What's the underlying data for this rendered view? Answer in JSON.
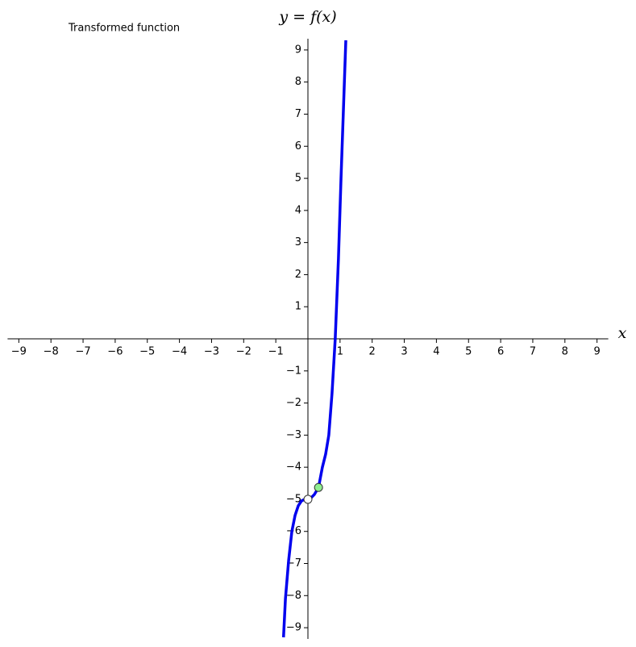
{
  "chart_data": {
    "type": "line",
    "ylabel": "y = f(x)",
    "xlabel": "x",
    "annotation": "Transformed function",
    "xlim": [
      -9.35,
      9.35
    ],
    "ylim": [
      -9.35,
      9.35
    ],
    "xticks": [
      {
        "value": -9,
        "label": "−9"
      },
      {
        "value": -8,
        "label": "−8"
      },
      {
        "value": -7,
        "label": "−7"
      },
      {
        "value": -6,
        "label": "−6"
      },
      {
        "value": -5,
        "label": "−5"
      },
      {
        "value": -4,
        "label": "−4"
      },
      {
        "value": -3,
        "label": "−3"
      },
      {
        "value": -2,
        "label": "−2"
      },
      {
        "value": -1,
        "label": "−1"
      },
      1,
      2,
      3,
      4,
      5,
      6,
      7,
      8,
      9
    ],
    "yticks": [
      {
        "value": -9,
        "label": "−9"
      },
      {
        "value": -8,
        "label": "−8"
      },
      {
        "value": -7,
        "label": "−7"
      },
      {
        "value": -6,
        "label": "−6"
      },
      {
        "value": -5,
        "label": "−5"
      },
      {
        "value": -4,
        "label": "−4"
      },
      {
        "value": -3,
        "label": "−3"
      },
      {
        "value": -2,
        "label": "−2"
      },
      {
        "value": -1,
        "label": "−1"
      },
      1,
      2,
      3,
      4,
      5,
      6,
      7,
      8,
      9
    ],
    "series": [
      {
        "color": "#0000ee",
        "x": [
          -0.76,
          -0.7,
          -0.6,
          -0.5,
          -0.4,
          -0.3,
          -0.2,
          -0.1,
          0,
          0.1,
          0.2,
          0.33,
          0.45,
          0.55,
          0.65,
          0.75,
          0.85,
          0.95,
          1.03,
          1.1,
          1.18
        ],
        "values": [
          -9.3,
          -8.1,
          -6.9,
          -6.0,
          -5.5,
          -5.2,
          -5.05,
          -5.0,
          -5.0,
          -4.95,
          -4.85,
          -4.63,
          -4.0,
          -3.6,
          -3.0,
          -1.7,
          0,
          2.5,
          5.0,
          7.0,
          9.3
        ]
      }
    ],
    "markers": {
      "x": [
        0,
        0.33
      ],
      "values": [
        -5,
        -4.63
      ],
      "colors": [
        "#ffffff",
        "#90ee90"
      ]
    }
  }
}
